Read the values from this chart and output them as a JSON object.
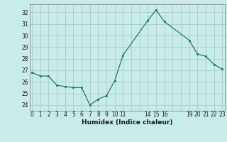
{
  "x": [
    0,
    1,
    2,
    3,
    4,
    5,
    6,
    7,
    8,
    9,
    10,
    11,
    14,
    15,
    16,
    19,
    20,
    21,
    22,
    23
  ],
  "y": [
    26.8,
    26.5,
    26.5,
    25.7,
    25.6,
    25.5,
    25.5,
    24.0,
    24.5,
    24.8,
    26.1,
    28.3,
    31.3,
    32.2,
    31.2,
    29.6,
    28.4,
    28.2,
    27.5,
    27.1
  ],
  "line_color": "#1a7a6e",
  "marker_color": "#1a7a6e",
  "bg_color": "#c8ecea",
  "grid_color": "#b0cece",
  "xlabel": "Humidex (Indice chaleur)",
  "ylim": [
    23.5,
    32.7
  ],
  "xlim": [
    -0.3,
    23.3
  ],
  "yticks": [
    24,
    25,
    26,
    27,
    28,
    29,
    30,
    31,
    32
  ],
  "all_xticks": [
    0,
    1,
    2,
    3,
    4,
    5,
    6,
    7,
    8,
    9,
    10,
    11,
    12,
    13,
    14,
    15,
    16,
    17,
    18,
    19,
    20,
    21,
    22,
    23
  ],
  "label_map": {
    "0": "0",
    "1": "1",
    "2": "2",
    "3": "3",
    "4": "4",
    "5": "5",
    "6": "6",
    "7": "7",
    "8": "8",
    "9": "9",
    "10": "10",
    "11": "11",
    "14": "14",
    "15": "15",
    "16": "16",
    "19": "19",
    "20": "20",
    "21": "21",
    "22": "22",
    "23": "23"
  }
}
